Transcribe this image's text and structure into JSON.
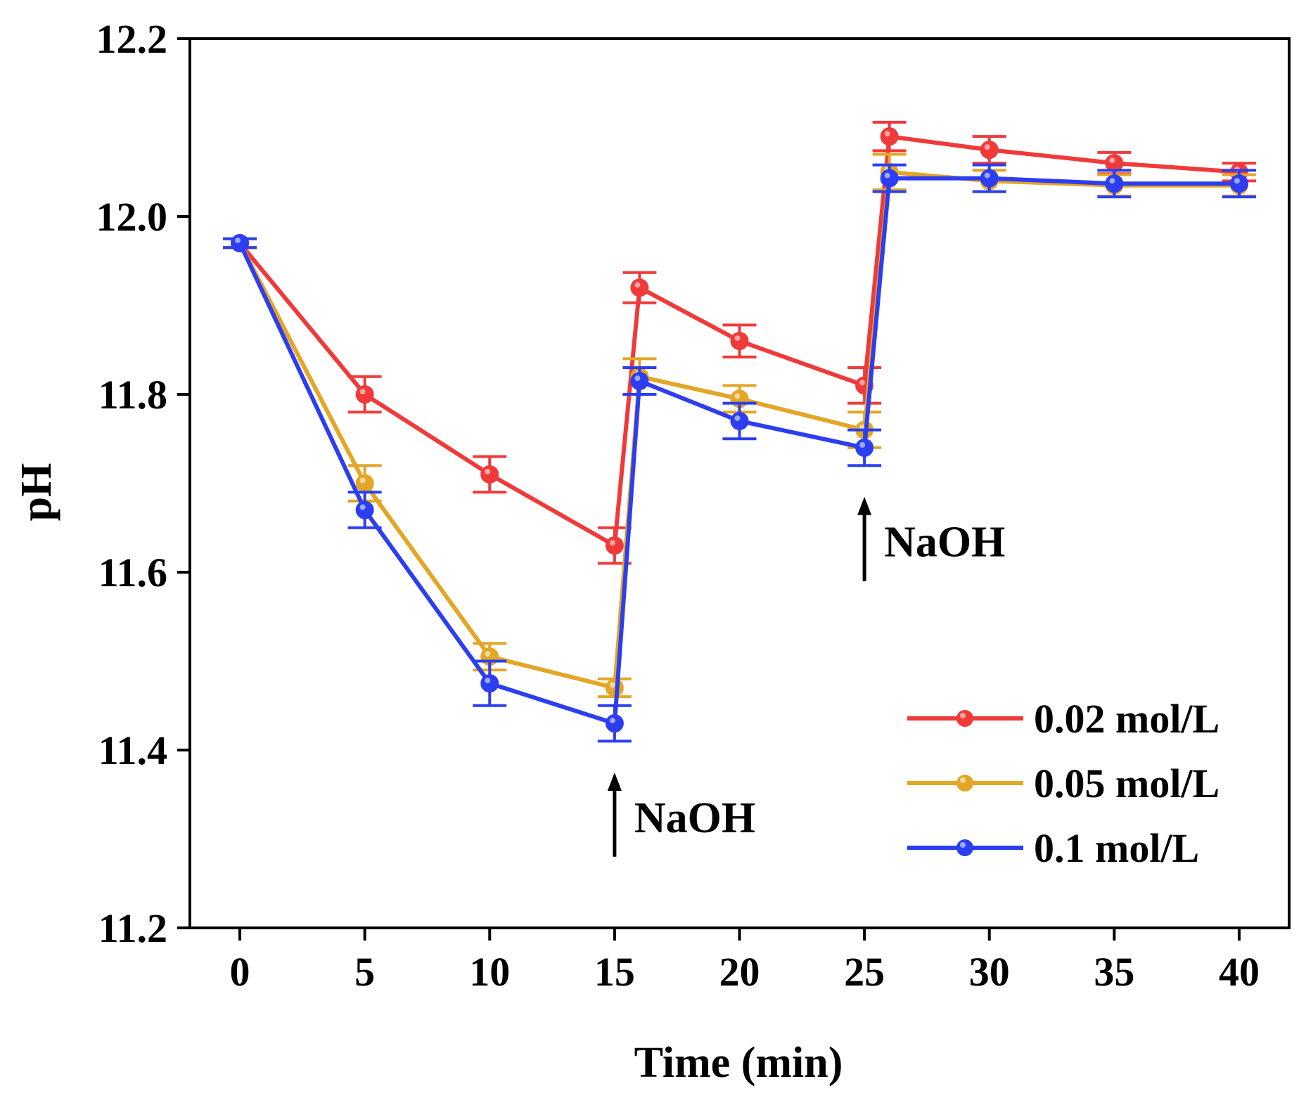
{
  "chart_data": {
    "type": "line",
    "title": "",
    "xlabel": "Time (min)",
    "ylabel": "pH",
    "xlim": [
      -2,
      42
    ],
    "ylim": [
      11.2,
      12.2
    ],
    "xticks": [
      0,
      5,
      10,
      15,
      20,
      25,
      30,
      35,
      40
    ],
    "yticks": [
      11.2,
      11.4,
      11.6,
      11.8,
      12.0,
      12.2
    ],
    "xtick_labels": [
      "0",
      "5",
      "10",
      "15",
      "20",
      "25",
      "30",
      "35",
      "40"
    ],
    "ytick_labels": [
      "11.2",
      "11.4",
      "11.6",
      "11.8",
      "12.0",
      "12.2"
    ],
    "grid": false,
    "legend_position": "bottom-right",
    "series": [
      {
        "name": "0.02 mol/L",
        "color": "#f03a3a",
        "x": [
          0,
          5,
          10,
          15,
          16,
          20,
          25,
          26,
          30,
          35,
          40
        ],
        "y": [
          11.97,
          11.8,
          11.71,
          11.63,
          11.92,
          11.86,
          11.81,
          12.09,
          12.075,
          12.06,
          12.05
        ],
        "err": [
          0.005,
          0.02,
          0.02,
          0.02,
          0.017,
          0.018,
          0.02,
          0.016,
          0.015,
          0.012,
          0.01
        ]
      },
      {
        "name": "0.05 mol/L",
        "color": "#e3a626",
        "x": [
          0,
          5,
          10,
          15,
          16,
          20,
          25,
          26,
          30,
          35,
          40
        ],
        "y": [
          11.97,
          11.7,
          11.505,
          11.47,
          11.82,
          11.795,
          11.76,
          12.05,
          12.04,
          12.035,
          12.035
        ],
        "err": [
          0.005,
          0.02,
          0.015,
          0.01,
          0.02,
          0.015,
          0.02,
          0.02,
          0.012,
          0.012,
          0.012
        ]
      },
      {
        "name": "0.1 mol/L",
        "color": "#2c3ef0",
        "x": [
          0,
          5,
          10,
          15,
          16,
          20,
          25,
          26,
          30,
          35,
          40
        ],
        "y": [
          11.97,
          11.67,
          11.475,
          11.43,
          11.815,
          11.77,
          11.74,
          12.043,
          12.043,
          12.037,
          12.037
        ],
        "err": [
          0.005,
          0.02,
          0.025,
          0.02,
          0.015,
          0.02,
          0.02,
          0.015,
          0.015,
          0.015,
          0.015
        ]
      }
    ],
    "annotations": [
      {
        "text": "NaOH",
        "x": 15,
        "y_tip": 11.37,
        "y_tail": 11.28
      },
      {
        "text": "NaOH",
        "x": 25,
        "y_tip": 11.68,
        "y_tail": 11.59
      }
    ]
  }
}
